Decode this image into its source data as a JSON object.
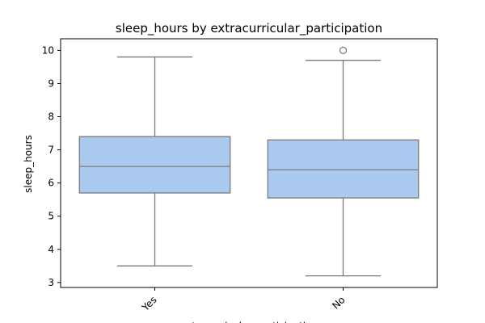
{
  "chart_data": {
    "type": "box",
    "title": "sleep_hours by extracurricular_participation",
    "xlabel": "extracurricular_participation",
    "ylabel": "sleep_hours",
    "ylim": [
      2.85,
      10.35
    ],
    "yticks": [
      3,
      4,
      5,
      6,
      7,
      8,
      9,
      10
    ],
    "categories": [
      "Yes",
      "No"
    ],
    "boxes": [
      {
        "category": "Yes",
        "whisker_low": 3.5,
        "q1": 5.7,
        "median": 6.5,
        "q3": 7.4,
        "whisker_high": 9.8,
        "outliers": []
      },
      {
        "category": "No",
        "whisker_low": 3.2,
        "q1": 5.55,
        "median": 6.4,
        "q3": 7.3,
        "whisker_high": 9.7,
        "outliers": [
          10.0
        ]
      }
    ],
    "colors": {
      "box_fill": "#a9c9ef",
      "line": "#7a7a7a",
      "axis": "#000000"
    },
    "grid": false,
    "legend": "none"
  }
}
